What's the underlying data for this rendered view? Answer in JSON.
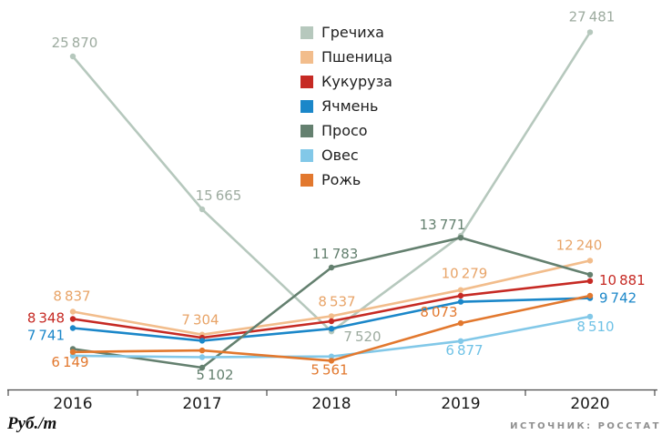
{
  "chart_data": {
    "type": "line",
    "title": "",
    "unit_label": "Руб./т",
    "source_label": "ИСТОЧНИК: РОССТАТ",
    "x_categories": [
      "2016",
      "2017",
      "2018",
      "2019",
      "2020"
    ],
    "ylim_estimate": [
      3645,
      28700
    ],
    "grid": false,
    "legend_position": "top-center",
    "series": [
      {
        "name": "Гречиха",
        "color": "#b6c8bd",
        "label_color": "#9dab9f",
        "values": [
          25870,
          15665,
          7520,
          13900,
          27481
        ],
        "point_labels": [
          {
            "i": 0,
            "dx": 2,
            "dy": -10,
            "anchor": "middle"
          },
          {
            "i": 1,
            "dx": 18,
            "dy": -10,
            "anchor": "middle"
          },
          {
            "i": 2,
            "dx": 34,
            "dy": 11,
            "anchor": "middle"
          },
          {
            "i": 4,
            "dx": 2,
            "dy": -12,
            "anchor": "middle"
          }
        ]
      },
      {
        "name": "Пшеница",
        "color": "#f2bd8c",
        "label_color": "#e8a468",
        "values": [
          8837,
          7304,
          8537,
          10279,
          12240
        ],
        "point_labels": [
          {
            "i": 0,
            "dx": -1,
            "dy": -12,
            "anchor": "middle"
          },
          {
            "i": 1,
            "dx": -2,
            "dy": -11,
            "anchor": "middle"
          },
          {
            "i": 2,
            "dx": 6,
            "dy": -11,
            "anchor": "middle"
          },
          {
            "i": 3,
            "dx": 4,
            "dy": -13,
            "anchor": "middle"
          },
          {
            "i": 4,
            "dx": -12,
            "dy": -12,
            "anchor": "middle"
          }
        ]
      },
      {
        "name": "Кукуруза",
        "color": "#c62a24",
        "label_color": "#c62a24",
        "values": [
          8348,
          7100,
          8200,
          9900,
          10881
        ],
        "point_labels": [
          {
            "i": 0,
            "dx": -9,
            "dy": 4,
            "anchor": "end"
          },
          {
            "i": 4,
            "dx": 10,
            "dy": 4,
            "anchor": "start"
          }
        ]
      },
      {
        "name": "Ячмень",
        "color": "#1b87c9",
        "label_color": "#1b87c9",
        "values": [
          7741,
          6900,
          7700,
          9500,
          9742
        ],
        "point_labels": [
          {
            "i": 0,
            "dx": -9,
            "dy": 13,
            "anchor": "end"
          },
          {
            "i": 4,
            "dx": 10,
            "dy": 5,
            "anchor": "start"
          }
        ]
      },
      {
        "name": "Просо",
        "color": "#64806f",
        "label_color": "#64806f",
        "values": [
          6350,
          5102,
          11783,
          13771,
          11300
        ],
        "point_labels": [
          {
            "i": 1,
            "dx": 14,
            "dy": 13,
            "anchor": "middle"
          },
          {
            "i": 2,
            "dx": 4,
            "dy": -10,
            "anchor": "middle"
          },
          {
            "i": 3,
            "dx": -20,
            "dy": -9,
            "anchor": "middle"
          }
        ]
      },
      {
        "name": "Овес",
        "color": "#82c8e8",
        "label_color": "#6fc2e6",
        "values": [
          5900,
          5800,
          5850,
          6877,
          8510
        ],
        "point_labels": [
          {
            "i": 3,
            "dx": 4,
            "dy": 15,
            "anchor": "middle"
          },
          {
            "i": 4,
            "dx": 6,
            "dy": 16,
            "anchor": "middle"
          }
        ]
      },
      {
        "name": "Рожь",
        "color": "#e2782e",
        "label_color": "#e2782e",
        "values": [
          6149,
          6250,
          5561,
          8073,
          9900
        ],
        "point_labels": [
          {
            "i": 0,
            "dx": -3,
            "dy": 16,
            "anchor": "middle"
          },
          {
            "i": 2,
            "dx": -2,
            "dy": 15,
            "anchor": "middle"
          },
          {
            "i": 3,
            "dx": -24,
            "dy": -7,
            "anchor": "middle"
          }
        ]
      }
    ]
  }
}
